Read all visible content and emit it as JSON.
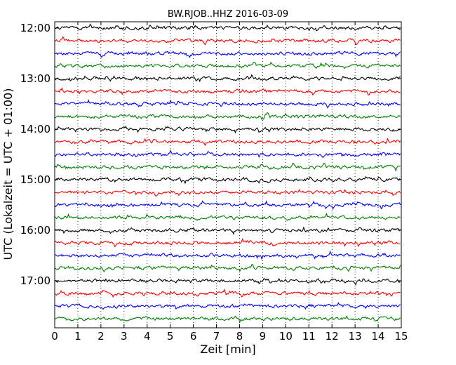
{
  "chart_data": {
    "type": "line",
    "title": "BW.RJOB..HHZ 2016-03-09",
    "xlabel": "Zeit  [min]",
    "ylabel": "UTC (Lokalzeit = UTC + 01:00)",
    "xlim": [
      0,
      15
    ],
    "x_ticks": [
      0,
      1,
      2,
      3,
      4,
      5,
      6,
      7,
      8,
      9,
      10,
      11,
      12,
      13,
      14,
      15
    ],
    "y_tick_labels": [
      "12:00",
      "13:00",
      "14:00",
      "15:00",
      "16:00",
      "17:00"
    ],
    "trace_interval_minutes": 15,
    "trace_start_times": [
      "12:00",
      "12:15",
      "12:30",
      "12:45",
      "13:00",
      "13:15",
      "13:30",
      "13:45",
      "14:00",
      "14:15",
      "14:30",
      "14:45",
      "15:00",
      "15:15",
      "15:30",
      "15:45",
      "16:00",
      "16:15",
      "16:30",
      "16:45",
      "17:00",
      "17:15",
      "17:30",
      "17:45"
    ],
    "trace_colors": [
      "#000000",
      "#ff0000",
      "#0000ff",
      "#008000"
    ],
    "vertical_grid": true,
    "grid_style": "dotted"
  }
}
